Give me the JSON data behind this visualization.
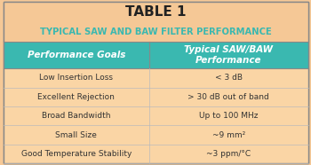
{
  "title": "TABLE 1",
  "subtitle": "TYPICAL SAW AND BAW FILTER PERFORMANCE",
  "header_col1": "Performance Goals",
  "header_col2": "Typical SAW/BAW\nPerformance",
  "rows": [
    [
      "Low Insertion Loss",
      "< 3 dB"
    ],
    [
      "Excellent Rejection",
      "> 30 dB out of band"
    ],
    [
      "Broad Bandwidth",
      "Up to 100 MHz"
    ],
    [
      "Small Size",
      "~9 mm²"
    ],
    [
      "Good Temperature Stability",
      "~3 ppm/°C"
    ]
  ],
  "bg_outer": "#f5c896",
  "bg_header_row": "#3ab8b0",
  "bg_data_row": "#fad5a5",
  "title_color": "#222222",
  "subtitle_color": "#3ab8b0",
  "header_text_color": "#ffffff",
  "data_text_color": "#333333",
  "border_color": "#aaaaaa",
  "col_split": 0.48
}
